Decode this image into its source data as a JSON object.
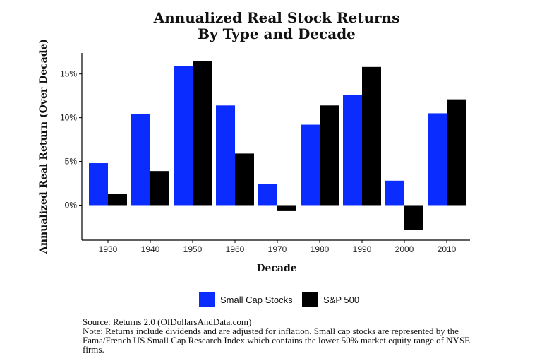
{
  "chart_data": {
    "type": "bar",
    "title": "Annualized Real Stock Returns",
    "subtitle": "By Type and Decade",
    "xlabel": "Decade",
    "ylabel": "Annualized Real Return (Over Decade)",
    "categories": [
      "1930",
      "1940",
      "1950",
      "1960",
      "1970",
      "1980",
      "1990",
      "2000",
      "2010"
    ],
    "series": [
      {
        "name": "Small Cap Stocks",
        "color": "#0a2cff",
        "values": [
          4.8,
          10.4,
          15.9,
          11.4,
          2.4,
          9.2,
          12.6,
          2.8,
          10.5
        ]
      },
      {
        "name": "S&P 500",
        "color": "#000000",
        "values": [
          1.3,
          3.9,
          16.5,
          5.9,
          -0.6,
          11.4,
          15.8,
          -2.8,
          12.1
        ]
      }
    ],
    "yticks": [
      0,
      5,
      10,
      15
    ],
    "ytick_labels": [
      "0%",
      "5%",
      "10%",
      "15%"
    ],
    "ylim": [
      -4,
      17.4
    ],
    "grid": false,
    "legend_position": "bottom"
  },
  "source": "Source: Returns 2.0 (OfDollarsAndData.com)",
  "note": "Note: Returns include dividends and are adjusted for inflation. Small cap stocks are represented by the Fama/French US Small Cap Research Index which contains the lower 50% market equity range of NYSE firms."
}
